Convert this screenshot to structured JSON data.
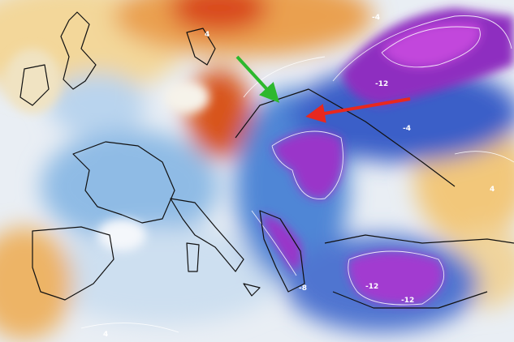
{
  "map": {
    "contour_labels": [
      "-4",
      "-12",
      "4",
      "-4",
      "-12",
      "-12",
      "-8",
      "4",
      "4"
    ]
  }
}
